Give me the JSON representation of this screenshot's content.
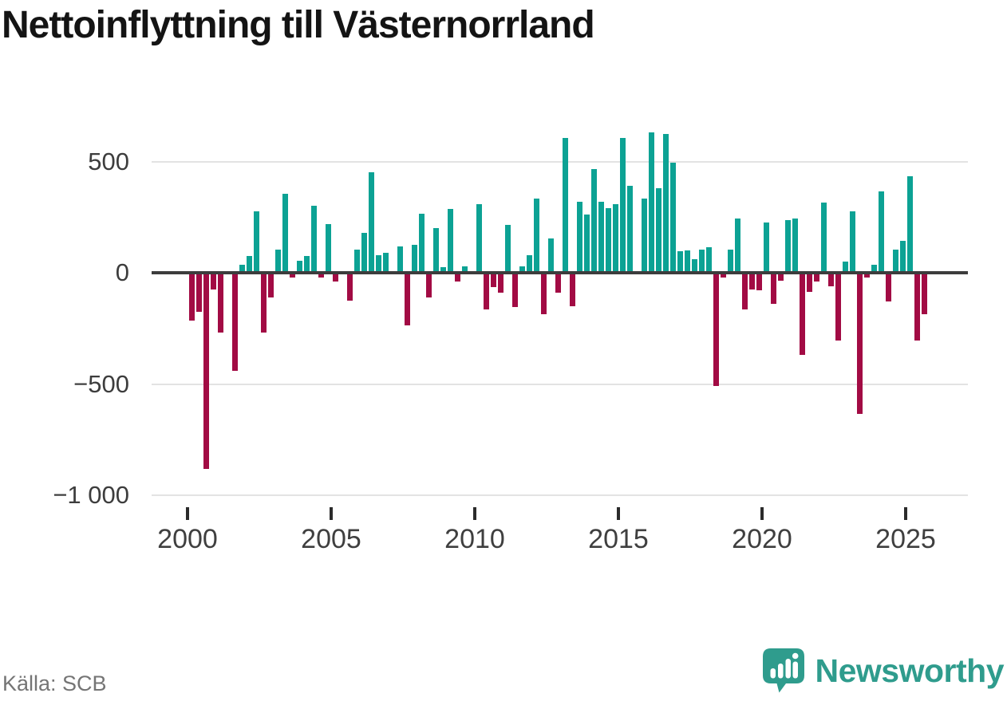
{
  "title": "Nettoinflyttning till Västernorrland",
  "source": {
    "text": "Källa: SCB"
  },
  "branding": {
    "wordmark": "Newsworthy",
    "icon": "newsworthy-logo-icon",
    "color": "#2f9c8d"
  },
  "colors": {
    "positive_bar": "#0ca294",
    "negative_bar": "#a20b44",
    "zero_axis": "#3d3d3d",
    "gridline": "#e3e3e3",
    "title_text": "#141414",
    "axis_text": "#3f3f3f",
    "source_text": "#757575",
    "background": "#ffffff"
  },
  "chart_data": {
    "type": "bar",
    "title": "Nettoinflyttning till Västernorrland",
    "xlabel": "",
    "ylabel": "",
    "frequency": "quarterly",
    "x_start": "2000 Q1",
    "x_end": "2025 Q4",
    "ylim": [
      -1050,
      700
    ],
    "grid": true,
    "legend": false,
    "y_ticks": [
      {
        "label": "500",
        "value": 500
      },
      {
        "label": "0",
        "value": 0
      },
      {
        "label": "−500",
        "value": -500
      },
      {
        "label": "−1 000",
        "value": -1000
      }
    ],
    "x_ticks": [
      {
        "label": "2000",
        "quarter_index": 0
      },
      {
        "label": "2005",
        "quarter_index": 20
      },
      {
        "label": "2010",
        "quarter_index": 40
      },
      {
        "label": "2015",
        "quarter_index": 60
      },
      {
        "label": "2020",
        "quarter_index": 80
      },
      {
        "label": "2025",
        "quarter_index": 100
      }
    ],
    "x": [
      "2000Q1",
      "2000Q2",
      "2000Q3",
      "2000Q4",
      "2001Q1",
      "2001Q2",
      "2001Q3",
      "2001Q4",
      "2002Q1",
      "2002Q2",
      "2002Q3",
      "2002Q4",
      "2003Q1",
      "2003Q2",
      "2003Q3",
      "2003Q4",
      "2004Q1",
      "2004Q2",
      "2004Q3",
      "2004Q4",
      "2005Q1",
      "2005Q2",
      "2005Q3",
      "2005Q4",
      "2006Q1",
      "2006Q2",
      "2006Q3",
      "2006Q4",
      "2007Q1",
      "2007Q2",
      "2007Q3",
      "2007Q4",
      "2008Q1",
      "2008Q2",
      "2008Q3",
      "2008Q4",
      "2009Q1",
      "2009Q2",
      "2009Q3",
      "2009Q4",
      "2010Q1",
      "2010Q2",
      "2010Q3",
      "2010Q4",
      "2011Q1",
      "2011Q2",
      "2011Q3",
      "2011Q4",
      "2012Q1",
      "2012Q2",
      "2012Q3",
      "2012Q4",
      "2013Q1",
      "2013Q2",
      "2013Q3",
      "2013Q4",
      "2014Q1",
      "2014Q2",
      "2014Q3",
      "2014Q4",
      "2015Q1",
      "2015Q2",
      "2015Q3",
      "2015Q4",
      "2016Q1",
      "2016Q2",
      "2016Q3",
      "2016Q4",
      "2017Q1",
      "2017Q2",
      "2017Q3",
      "2017Q4",
      "2018Q1",
      "2018Q2",
      "2018Q3",
      "2018Q4",
      "2019Q1",
      "2019Q2",
      "2019Q3",
      "2019Q4",
      "2020Q1",
      "2020Q2",
      "2020Q3",
      "2020Q4",
      "2021Q1",
      "2021Q2",
      "2021Q3",
      "2021Q4",
      "2022Q1",
      "2022Q2",
      "2022Q3",
      "2022Q4",
      "2023Q1",
      "2023Q2",
      "2023Q3",
      "2023Q4",
      "2024Q1",
      "2024Q2",
      "2024Q3",
      "2024Q4",
      "2025Q1",
      "2025Q2",
      "2025Q3",
      "2025Q4"
    ],
    "values": [
      -215,
      -175,
      -880,
      -75,
      -270,
      0,
      -440,
      35,
      75,
      275,
      -270,
      -110,
      105,
      355,
      -20,
      55,
      75,
      300,
      -20,
      220,
      -40,
      0,
      -125,
      105,
      180,
      450,
      80,
      90,
      0,
      120,
      -235,
      125,
      265,
      -110,
      200,
      25,
      285,
      -40,
      30,
      0,
      310,
      -165,
      -65,
      -90,
      215,
      -155,
      30,
      80,
      335,
      -185,
      155,
      -90,
      605,
      -150,
      320,
      260,
      465,
      320,
      290,
      310,
      605,
      390,
      0,
      335,
      630,
      380,
      625,
      495,
      95,
      100,
      60,
      105,
      115,
      -510,
      -20,
      105,
      245,
      -165,
      -75,
      -80,
      225,
      -140,
      -35,
      235,
      245,
      -370,
      -85,
      -40,
      315,
      -60,
      -305,
      50,
      275,
      -635,
      -20,
      35,
      365,
      -130,
      105,
      145,
      435,
      -305,
      -185,
      0
    ]
  }
}
